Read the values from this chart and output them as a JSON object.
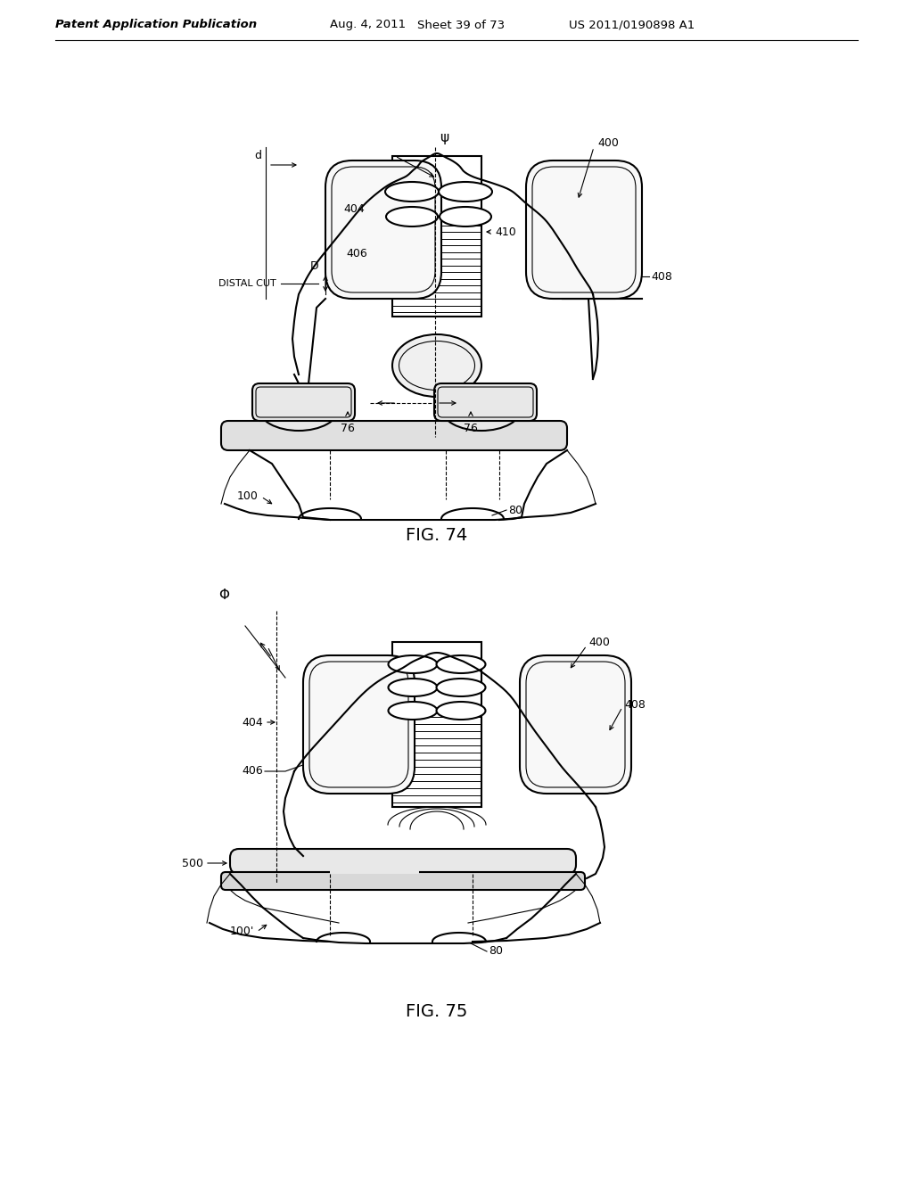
{
  "bg_color": "#ffffff",
  "fig_width": 10.24,
  "fig_height": 13.2,
  "header_text": "Patent Application Publication",
  "header_date": "Aug. 4, 2011",
  "header_sheet": "Sheet 39 of 73",
  "header_patent": "US 2011/0190898 A1",
  "fig74_caption": "FIG. 74",
  "fig75_caption": "FIG. 75",
  "line_color": "#000000",
  "line_width": 1.5,
  "thin_line": 0.8,
  "annotation_fontsize": 9,
  "caption_fontsize": 14,
  "header_fontsize": 9.5
}
